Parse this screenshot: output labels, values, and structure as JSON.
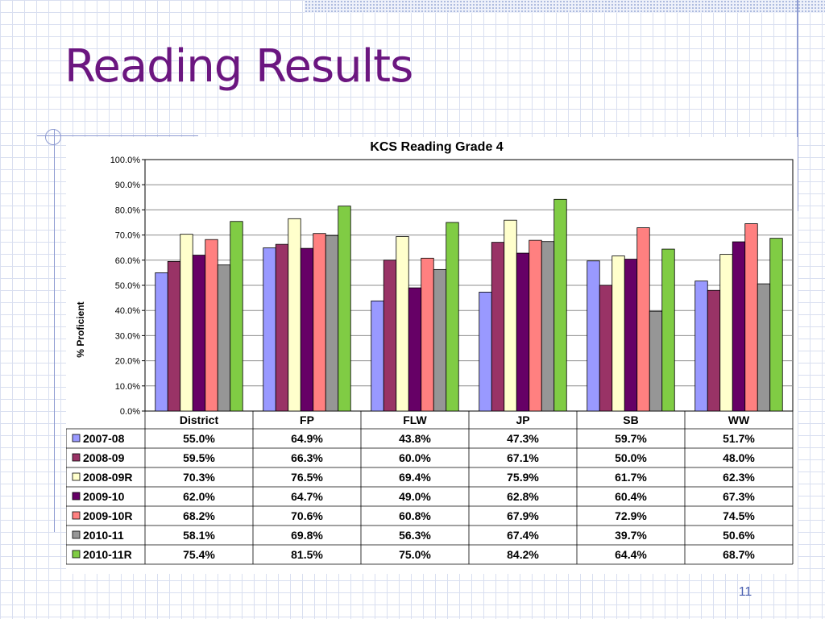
{
  "slide": {
    "title": "Reading Results",
    "page_number": "11"
  },
  "colors": {
    "title": "#6b1680",
    "grid_lines": "#d9dff0",
    "accent_lines": "#8e9bd1"
  },
  "chart_data": {
    "type": "bar",
    "title": "KCS Reading Grade 4",
    "xlabel": "",
    "ylabel": "% Proficient",
    "ylim": [
      0,
      100
    ],
    "y_ticks": [
      "0.0%",
      "10.0%",
      "20.0%",
      "30.0%",
      "40.0%",
      "50.0%",
      "60.0%",
      "70.0%",
      "80.0%",
      "90.0%",
      "100.0%"
    ],
    "grid": true,
    "legend": "data-table",
    "categories": [
      "District",
      "FP",
      "FLW",
      "JP",
      "SB",
      "WW"
    ],
    "series": [
      {
        "name": "2007-08",
        "color": "#9999ff",
        "values": [
          55.0,
          64.9,
          43.8,
          47.3,
          59.7,
          51.7
        ],
        "labels": [
          "55.0%",
          "64.9%",
          "43.8%",
          "47.3%",
          "59.7%",
          "51.7%"
        ]
      },
      {
        "name": "2008-09",
        "color": "#993366",
        "values": [
          59.5,
          66.3,
          60.0,
          67.1,
          50.0,
          48.0
        ],
        "labels": [
          "59.5%",
          "66.3%",
          "60.0%",
          "67.1%",
          "50.0%",
          "48.0%"
        ]
      },
      {
        "name": "2008-09R",
        "color": "#ffffcc",
        "values": [
          70.3,
          76.5,
          69.4,
          75.9,
          61.7,
          62.3
        ],
        "labels": [
          "70.3%",
          "76.5%",
          "69.4%",
          "75.9%",
          "61.7%",
          "62.3%"
        ]
      },
      {
        "name": "2009-10",
        "color": "#660066",
        "values": [
          62.0,
          64.7,
          49.0,
          62.8,
          60.4,
          67.3
        ],
        "labels": [
          "62.0%",
          "64.7%",
          "49.0%",
          "62.8%",
          "60.4%",
          "67.3%"
        ]
      },
      {
        "name": "2009-10R",
        "color": "#ff8080",
        "values": [
          68.2,
          70.6,
          60.8,
          67.9,
          72.9,
          74.5
        ],
        "labels": [
          "68.2%",
          "70.6%",
          "60.8%",
          "67.9%",
          "72.9%",
          "74.5%"
        ]
      },
      {
        "name": "2010-11",
        "color": "#969696",
        "values": [
          58.1,
          69.8,
          56.3,
          67.4,
          39.7,
          50.6
        ],
        "labels": [
          "58.1%",
          "69.8%",
          "56.3%",
          "67.4%",
          "39.7%",
          "50.6%"
        ]
      },
      {
        "name": "2010-11R",
        "color": "#80cc44",
        "values": [
          75.4,
          81.5,
          75.0,
          84.2,
          64.4,
          68.7
        ],
        "labels": [
          "75.4%",
          "81.5%",
          "75.0%",
          "84.2%",
          "64.4%",
          "68.7%"
        ]
      }
    ]
  }
}
